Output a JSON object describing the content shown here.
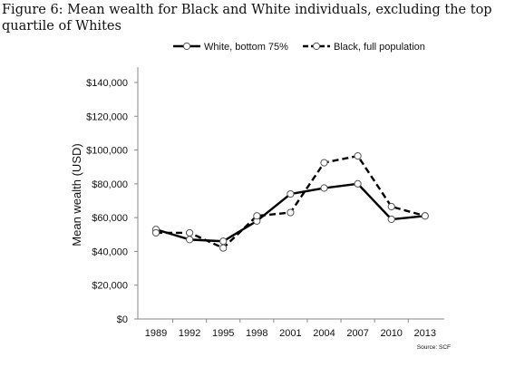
{
  "caption": "Figure 6: Mean wealth for Black and White individuals, excluding the top quartile of Whites",
  "chart_data": {
    "type": "line",
    "title": "",
    "xlabel": "",
    "ylabel": "Mean wealth (USD)",
    "categories": [
      "1989",
      "1992",
      "1995",
      "1998",
      "2001",
      "2004",
      "2007",
      "2010",
      "2013"
    ],
    "y_ticks": [
      "$0",
      "$20,000",
      "$40,000",
      "$60,000",
      "$80,000",
      "$100,000",
      "$120,000",
      "$140,000"
    ],
    "ylim": [
      0,
      140000
    ],
    "grid": false,
    "legend_position": "top",
    "series": [
      {
        "name": "White, bottom 75%",
        "values": [
          53000,
          47000,
          46000,
          58000,
          74000,
          77500,
          80000,
          59000,
          61000
        ],
        "dash": false
      },
      {
        "name": "Black, full population",
        "values": [
          51000,
          51000,
          42000,
          61000,
          63000,
          92500,
          96500,
          66500,
          61000
        ],
        "dash": true
      }
    ],
    "source_note": "Source: SCF",
    "colors": {
      "line": "#000000",
      "marker_fill": "#ffffff",
      "axis": "#888888"
    }
  }
}
